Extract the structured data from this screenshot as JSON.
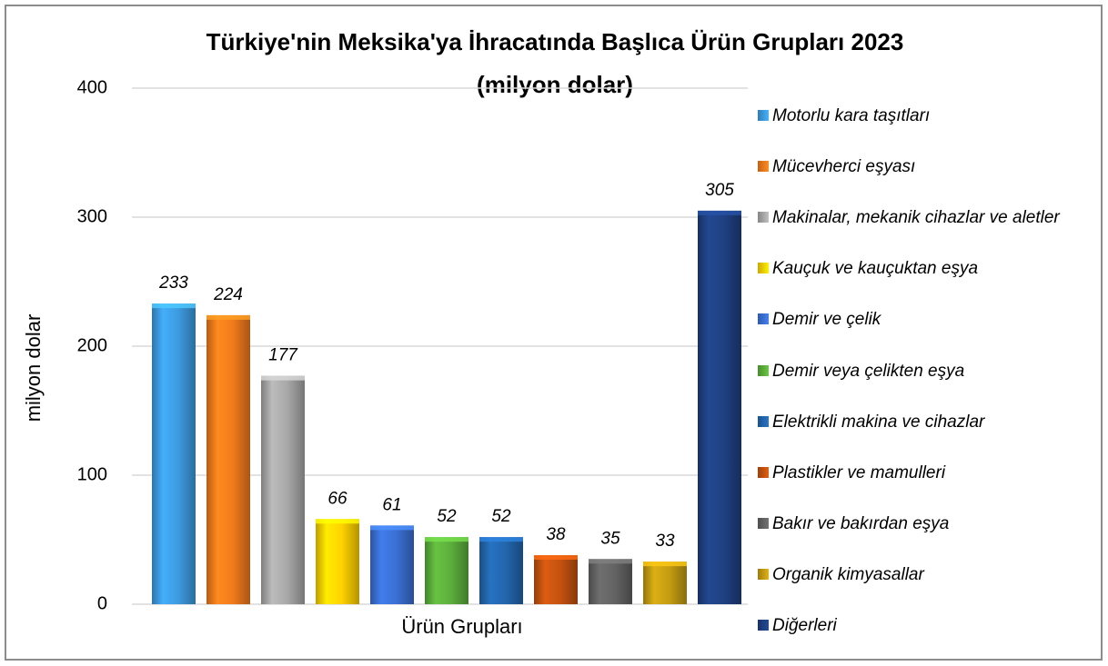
{
  "chart_data": {
    "type": "bar",
    "title": "Türkiye'nin Meksika'ya İhracatında Başlıca Ürün Grupları 2023",
    "subtitle": "(milyon dolar)",
    "x_label": "Ürün Grupları",
    "y_label": "milyon dolar",
    "ylim": [
      0,
      400
    ],
    "yticks": [
      0,
      100,
      200,
      300,
      400
    ],
    "grid": true,
    "legend": "right",
    "series": [
      {
        "name": "Motorlu kara taşıtları",
        "color": "#3d9be0",
        "values": [
          233
        ]
      },
      {
        "name": "Mücevherci eşyası",
        "color": "#f27b1c",
        "values": [
          224
        ]
      },
      {
        "name": "Makinalar, mekanik cihazlar ve aletler",
        "color": "#a8a8a8",
        "values": [
          177
        ]
      },
      {
        "name": "Kauçuk ve kauçuktan eşya",
        "color": "#ffd200",
        "values": [
          66
        ]
      },
      {
        "name": "Demir ve çelik",
        "color": "#3b70d4",
        "values": [
          61
        ]
      },
      {
        "name": "Demir veya çelikten eşya",
        "color": "#5cae3c",
        "values": [
          52
        ]
      },
      {
        "name": "Elektrikli makina ve cihazlar",
        "color": "#2366ad",
        "values": [
          52
        ]
      },
      {
        "name": "Plastikler ve mamulleri",
        "color": "#c4520f",
        "values": [
          38
        ]
      },
      {
        "name": "Bakır ve bakırdan eşya",
        "color": "#636363",
        "values": [
          35
        ]
      },
      {
        "name": "Organik kimyasallar",
        "color": "#c49c12",
        "values": [
          33
        ]
      },
      {
        "name": "Diğerleri",
        "color": "#1f4082",
        "values": [
          305
        ]
      }
    ]
  }
}
